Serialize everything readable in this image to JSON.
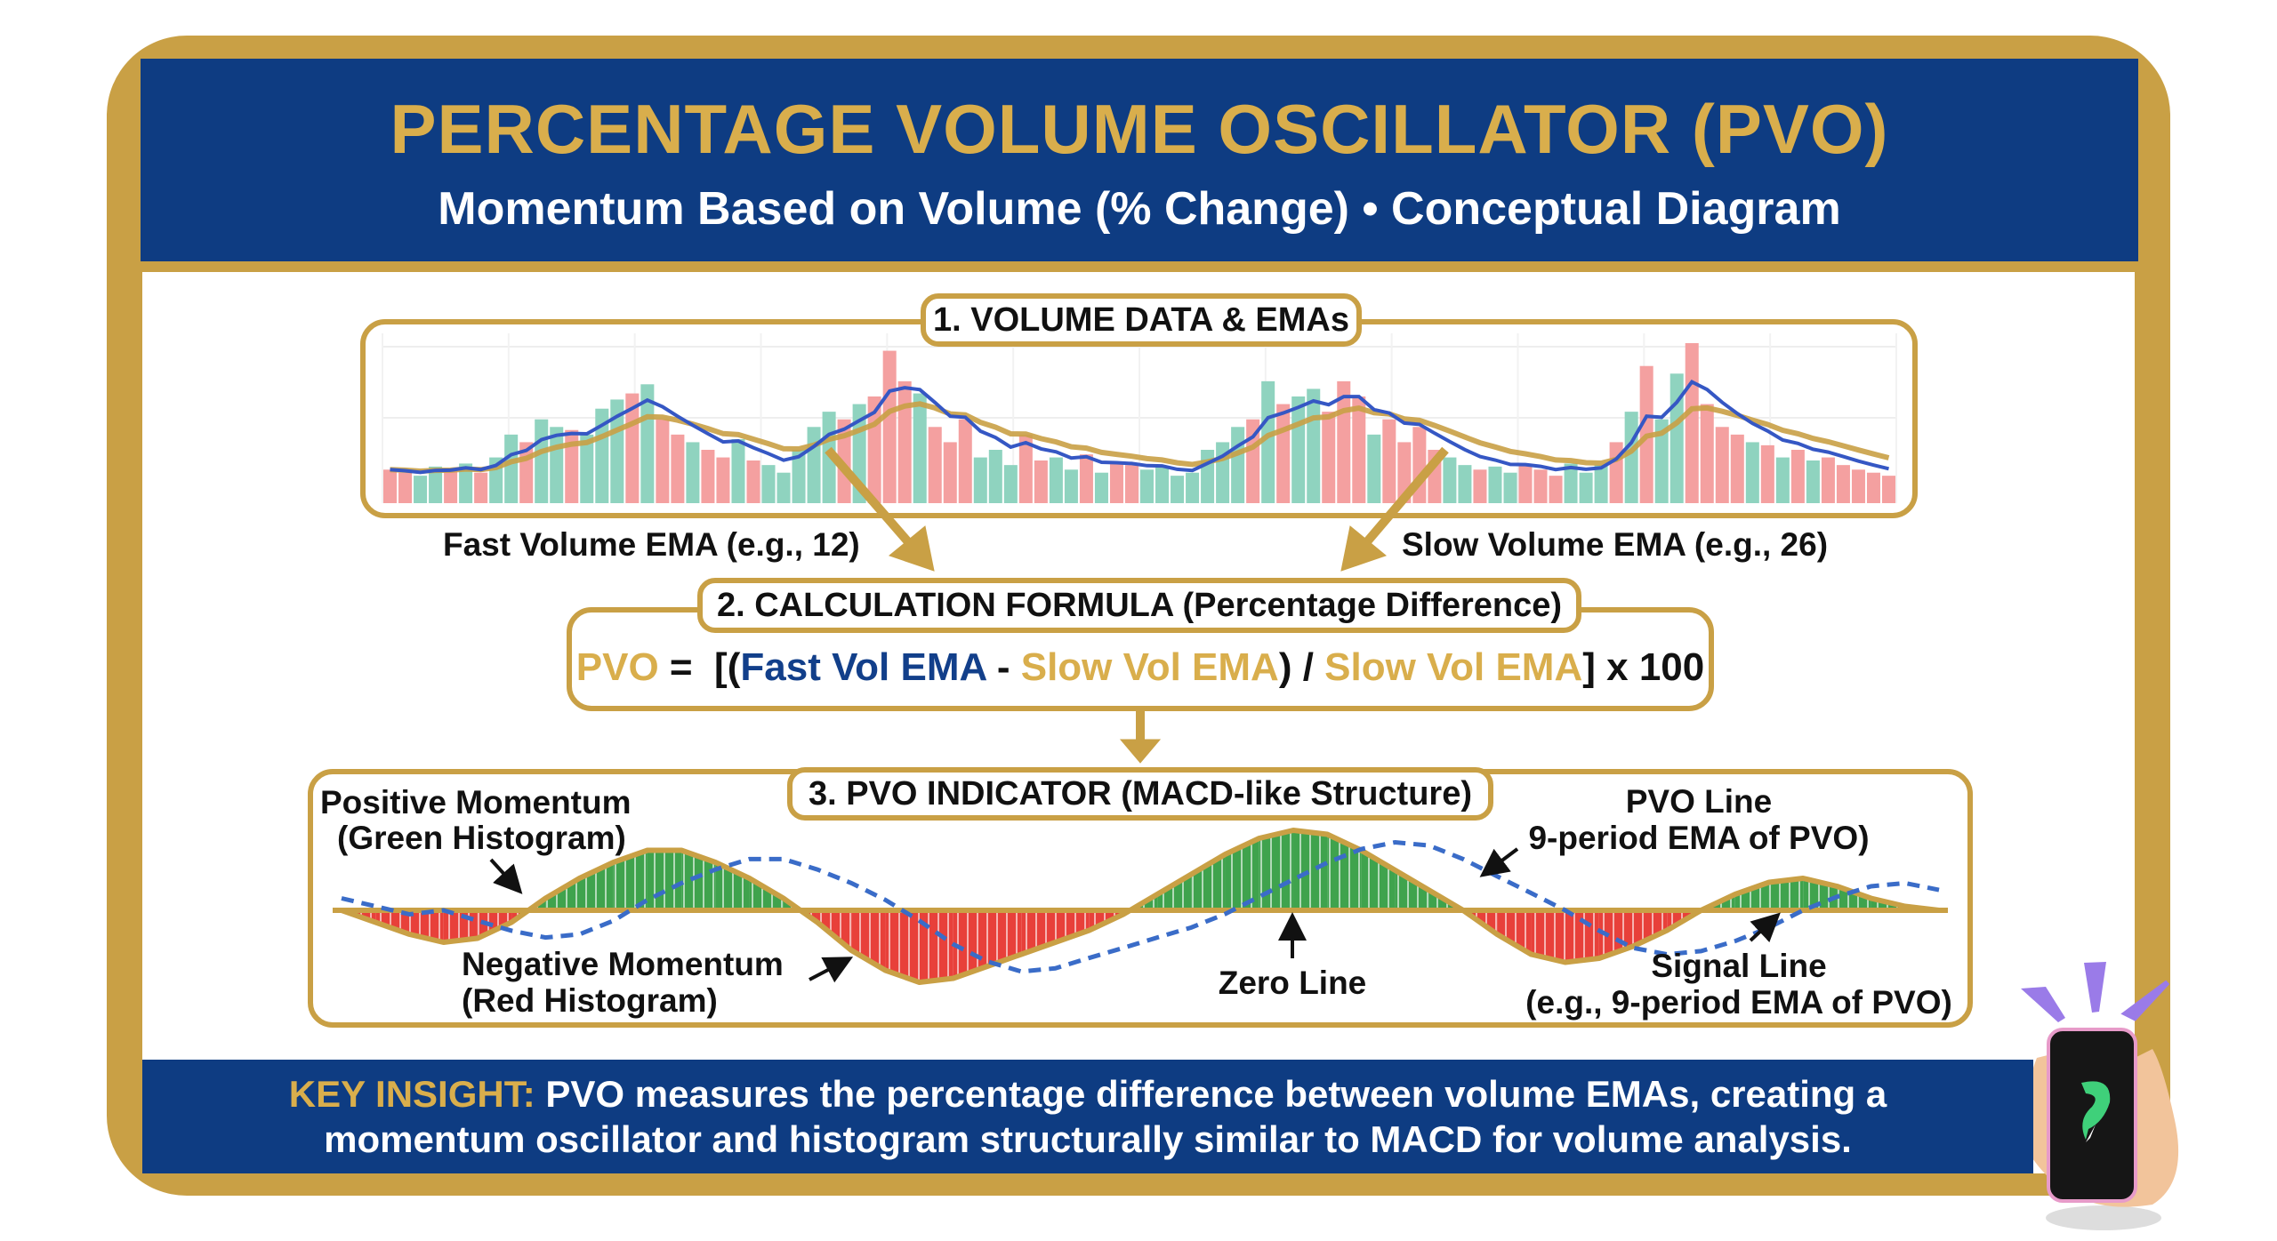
{
  "header": {
    "title": "PERCENTAGE VOLUME OSCILLATOR (PVO)",
    "subtitle": "Momentum Based on Volume (% Change) • Conceptual Diagram"
  },
  "colors": {
    "navy": "#0E3C82",
    "gold": "#C9A045",
    "title_gold": "#D9AE4C",
    "up_bar": "#8FD3BF",
    "down_bar": "#F4A0A0",
    "fast_ema": "#3557C4",
    "slow_ema": "#C9A045",
    "hist_pos": "#3FA34D",
    "hist_neg": "#E8403A",
    "signal": "#3A6CC8"
  },
  "section1": {
    "label": "1. VOLUME DATA & EMAs",
    "fast_label": "Fast Volume EMA (e.g., 12)",
    "slow_label": "Slow Volume EMA (e.g., 26)",
    "fast_period": 12,
    "slow_period": 26,
    "volume": [
      22,
      20,
      18,
      24,
      22,
      26,
      20,
      30,
      45,
      40,
      55,
      50,
      48,
      45,
      62,
      68,
      72,
      78,
      55,
      45,
      40,
      35,
      30,
      42,
      28,
      25,
      20,
      35,
      50,
      60,
      55,
      65,
      70,
      100,
      80,
      72,
      50,
      40,
      55,
      30,
      35,
      25,
      45,
      28,
      30,
      22,
      32,
      20,
      26,
      25,
      22,
      24,
      18,
      20,
      35,
      40,
      50,
      55,
      80,
      65,
      70,
      75,
      60,
      80,
      70,
      45,
      55,
      40,
      50,
      35,
      30,
      25,
      22,
      24,
      20,
      25,
      22,
      18,
      26,
      20,
      25,
      40,
      60,
      90,
      55,
      85,
      105,
      65,
      50,
      45,
      40,
      38,
      30,
      35,
      28,
      30,
      25,
      22,
      20,
      18
    ],
    "direction": "rrggrgrggrggrgggrgrrgrrgrgggggrgrrrgrrrgggrrggrgrrgggggggrgrggrrrgrrrrggrggrrrgggrgrggrrrrgrgrgrrrrr"
  },
  "section2": {
    "label": "2. CALCULATION FORMULA (Percentage Difference)",
    "formula": {
      "lhs": "PVO",
      "eq": " =  [(",
      "fast": "Fast Vol EMA",
      "minus": " - ",
      "slow1": "Slow Vol EMA",
      "div": ") / ",
      "slow2": "Slow Vol EMA",
      "tail": "] x 100"
    }
  },
  "section3": {
    "label": "3. PVO INDICATOR (MACD-like Structure)",
    "pvo": [
      0,
      -0.3,
      -0.6,
      -0.8,
      -0.7,
      -0.3,
      0.3,
      0.8,
      1.2,
      1.5,
      1.5,
      1.2,
      0.8,
      0.3,
      -0.3,
      -1.0,
      -1.5,
      -1.8,
      -1.7,
      -1.4,
      -1.1,
      -0.8,
      -0.5,
      -0.1,
      0.4,
      0.9,
      1.4,
      1.8,
      2.0,
      1.9,
      1.5,
      1.0,
      0.5,
      0,
      -0.6,
      -1.1,
      -1.3,
      -1.2,
      -0.9,
      -0.5,
      0,
      0.4,
      0.7,
      0.8,
      0.6,
      0.3,
      0.1,
      0
    ],
    "signal": [
      0.3,
      0.1,
      -0.1,
      0,
      -0.26,
      -0.51,
      -0.68,
      -0.6,
      -0.26,
      0.26,
      0.68,
      1.02,
      1.28,
      1.28,
      1.02,
      0.68,
      0.26,
      -0.26,
      -0.85,
      -1.28,
      -1.53,
      -1.45,
      -1.19,
      -0.94,
      -0.68,
      -0.43,
      -0.09,
      0.34,
      0.77,
      1.19,
      1.53,
      1.7,
      1.62,
      1.28,
      0.85,
      0.43,
      0,
      -0.51,
      -0.94,
      -1.1,
      -1.02,
      -0.77,
      -0.43,
      0,
      0.34,
      0.6,
      0.68,
      0.51
    ],
    "annotations": {
      "positive_1": "Positive Momentum",
      "positive_2": "(Green Histogram)",
      "negative_1": "Negative Momentum",
      "negative_2": "(Red Histogram)",
      "zero": "Zero Line",
      "pvo_1": "PVO Line",
      "pvo_2": "9-period EMA of PVO)",
      "signal_1": "Signal Line",
      "signal_2": "(e.g., 9-period EMA of PVO)"
    }
  },
  "footer": {
    "key": "KEY INSIGHT:",
    "line1": " PVO measures the percentage difference between volume EMAs, creating a",
    "line2": "momentum oscillator and histogram structurally similar to MACD for volume analysis."
  },
  "mascot": {
    "icon": "phone-in-hand-logo"
  }
}
